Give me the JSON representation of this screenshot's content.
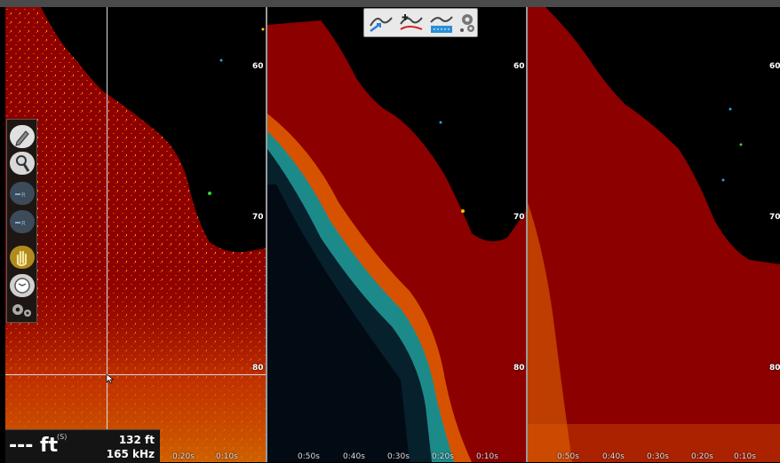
{
  "colors": {
    "water": "#000000",
    "bottom": "#8c0000",
    "clutter_hot": "#f0a000",
    "clutter_cold": "#1a6fd0"
  },
  "panels": [
    {
      "depth_labels": [
        "60",
        "70",
        "80"
      ],
      "time_labels": [
        "0:20s",
        "0:10s"
      ]
    },
    {
      "depth_labels": [
        "60",
        "70",
        "80"
      ],
      "time_labels": [
        "0:50s",
        "0:40s",
        "0:30s",
        "0:20s",
        "0:10s"
      ]
    },
    {
      "depth_labels": [
        "60",
        "70",
        "80"
      ],
      "time_labels": [
        "0:50s",
        "0:40s",
        "0:30s",
        "0:20s",
        "0:10s"
      ]
    }
  ],
  "toolbar": {
    "icons": [
      "sonar-view-icon",
      "chart-sonar-icon",
      "structure-scan-icon",
      "settings-gear-icon"
    ]
  },
  "sidebar": {
    "icons": [
      "pencil-icon",
      "zoom-icon",
      "range-up-icon",
      "range-down-icon",
      "hand-pan-icon",
      "freeze-icon",
      "settings-gear-icon"
    ]
  },
  "readout": {
    "depth_value": "--- ft",
    "depth_source": "(S)",
    "range": "132 ft",
    "frequency": "165 kHz"
  }
}
